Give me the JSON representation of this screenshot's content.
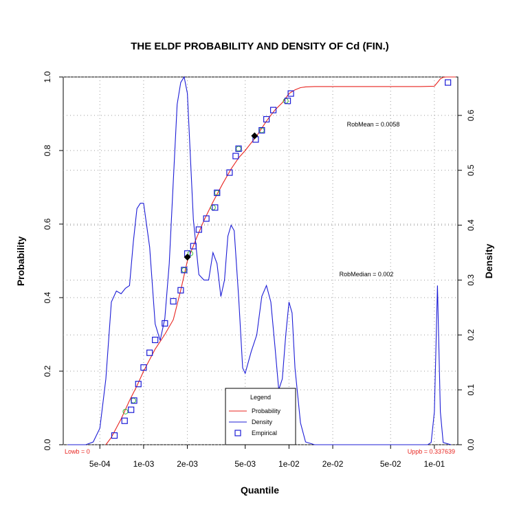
{
  "chart_data": {
    "type": "line",
    "title": "THE ELDF PROBABILITY AND DENSITY OF  Cd  (FIN.)",
    "xlabel": "Quantile",
    "ylabel_left": "Probability",
    "ylabel_right": "Density",
    "x_scale": "log",
    "x_ticks": [
      "5e-04",
      "1e-03",
      "2e-03",
      "5e-03",
      "1e-02",
      "2e-02",
      "5e-02",
      "1e-01"
    ],
    "x_tick_values": [
      0.0005,
      0.001,
      0.002,
      0.005,
      0.01,
      0.02,
      0.05,
      0.1
    ],
    "xlim": [
      0.00028,
      0.145
    ],
    "ylim_left": [
      0,
      1
    ],
    "y_ticks_left": [
      "0.0",
      "0.2",
      "0.4",
      "0.6",
      "0.8",
      "1.0"
    ],
    "ylim_right": [
      0,
      0.67
    ],
    "y_ticks_right": [
      "0.0",
      "0.1",
      "0.2",
      "0.3",
      "0.4",
      "0.5",
      "0.6"
    ],
    "grid": true,
    "legend": {
      "title": "Legend",
      "position": "bottom-center",
      "items": [
        {
          "label": "Probability",
          "color": "#e8231e",
          "kind": "line"
        },
        {
          "label": "Density",
          "color": "#1b1bd6",
          "kind": "line"
        },
        {
          "label": "Empirical",
          "color": "#1b1bd6",
          "kind": "square"
        }
      ]
    },
    "annotations": {
      "robmean": "RobMean = 0.0058",
      "robmedian": "RobMedian = 0.002",
      "lowb": "Lowb = 0",
      "uppb": "Uppb = 0.337639"
    },
    "colors": {
      "probability": "#e8231e",
      "density": "#1b1bd6",
      "empirical": "#1b1bd6",
      "green_points": "#3cb83c",
      "markers": "#000000",
      "bound_labels": "#e8231e"
    },
    "series": [
      {
        "name": "Probability",
        "x": [
          0.00055,
          0.0006,
          0.0007,
          0.0008,
          0.0009,
          0.001,
          0.0012,
          0.0014,
          0.0016,
          0.0018,
          0.002,
          0.0023,
          0.0026,
          0.003,
          0.0035,
          0.004,
          0.0045,
          0.005,
          0.006,
          0.007,
          0.008,
          0.009,
          0.01,
          0.011,
          0.012,
          0.013,
          0.015,
          0.02,
          0.03,
          0.05,
          0.08,
          0.1,
          0.105,
          0.11,
          0.115,
          0.12,
          0.13,
          0.14
        ],
        "y": [
          0.0,
          0.02,
          0.07,
          0.12,
          0.16,
          0.2,
          0.26,
          0.3,
          0.34,
          0.42,
          0.5,
          0.56,
          0.61,
          0.66,
          0.71,
          0.75,
          0.78,
          0.8,
          0.84,
          0.88,
          0.91,
          0.93,
          0.955,
          0.965,
          0.971,
          0.973,
          0.974,
          0.974,
          0.974,
          0.974,
          0.974,
          0.975,
          0.985,
          0.995,
          0.999,
          1.0,
          1.0,
          1.0
        ]
      },
      {
        "name": "Density",
        "x": [
          0.0003,
          0.0004,
          0.00045,
          0.0005,
          0.00055,
          0.0006,
          0.00065,
          0.0007,
          0.00075,
          0.0008,
          0.00085,
          0.0009,
          0.00095,
          0.001,
          0.0011,
          0.0012,
          0.0013,
          0.0014,
          0.0015,
          0.0016,
          0.0017,
          0.0018,
          0.0019,
          0.002,
          0.0022,
          0.0024,
          0.0026,
          0.0028,
          0.003,
          0.0032,
          0.0034,
          0.0036,
          0.0038,
          0.004,
          0.0042,
          0.0045,
          0.0048,
          0.005,
          0.0055,
          0.006,
          0.0065,
          0.007,
          0.0075,
          0.008,
          0.0085,
          0.009,
          0.0095,
          0.01,
          0.0105,
          0.011,
          0.012,
          0.013,
          0.015,
          0.02,
          0.05,
          0.09,
          0.095,
          0.1,
          0.105,
          0.11,
          0.115,
          0.13
        ],
        "y": [
          0.0,
          0.0,
          0.005,
          0.03,
          0.12,
          0.26,
          0.28,
          0.275,
          0.285,
          0.29,
          0.37,
          0.43,
          0.44,
          0.44,
          0.36,
          0.22,
          0.19,
          0.23,
          0.33,
          0.48,
          0.62,
          0.66,
          0.67,
          0.64,
          0.41,
          0.31,
          0.3,
          0.3,
          0.35,
          0.33,
          0.27,
          0.3,
          0.38,
          0.4,
          0.39,
          0.27,
          0.14,
          0.13,
          0.17,
          0.2,
          0.27,
          0.29,
          0.26,
          0.18,
          0.1,
          0.12,
          0.2,
          0.26,
          0.24,
          0.14,
          0.04,
          0.005,
          0.0,
          0.0,
          0.0,
          0.0,
          0.004,
          0.06,
          0.29,
          0.06,
          0.004,
          0.0
        ]
      },
      {
        "name": "Empirical",
        "x": [
          0.00063,
          0.00074,
          0.00082,
          0.00086,
          0.00092,
          0.001,
          0.0011,
          0.0012,
          0.0014,
          0.0016,
          0.0018,
          0.0019,
          0.002,
          0.0022,
          0.0024,
          0.0027,
          0.0031,
          0.0032,
          0.0039,
          0.0043,
          0.0045,
          0.0059,
          0.0065,
          0.007,
          0.0078,
          0.0098,
          0.0103,
          0.124
        ],
        "y": [
          0.025,
          0.065,
          0.095,
          0.12,
          0.165,
          0.21,
          0.25,
          0.285,
          0.33,
          0.39,
          0.42,
          0.475,
          0.52,
          0.54,
          0.585,
          0.615,
          0.645,
          0.685,
          0.74,
          0.785,
          0.805,
          0.83,
          0.855,
          0.885,
          0.91,
          0.935,
          0.955,
          0.985
        ]
      },
      {
        "name": "green_fitted",
        "x": [
          0.00075,
          0.00085,
          0.0019,
          0.0021,
          0.003,
          0.0032,
          0.0045,
          0.0065,
          0.0095
        ],
        "y": [
          0.09,
          0.12,
          0.475,
          0.52,
          0.645,
          0.685,
          0.805,
          0.855,
          0.935
        ]
      },
      {
        "name": "robust_markers",
        "x": [
          0.002,
          0.0058
        ],
        "y": [
          0.51,
          0.84
        ]
      }
    ]
  }
}
